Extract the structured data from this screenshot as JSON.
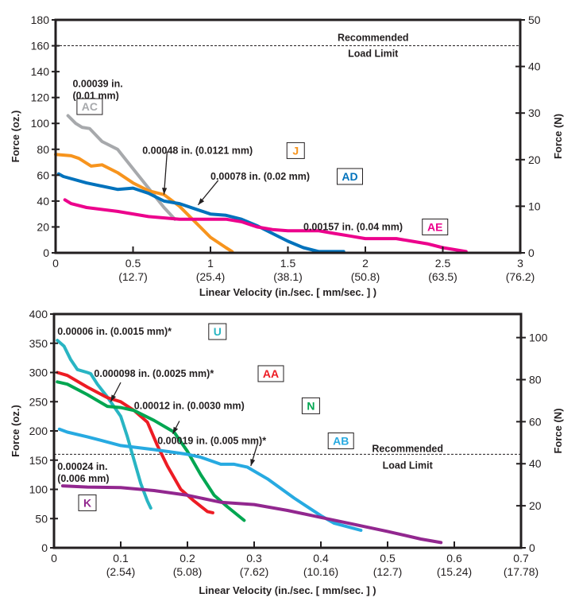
{
  "chart_data": [
    {
      "type": "line",
      "xlabel": "Linear Velocity (in./sec. [ mm/sec. ] )",
      "ylabel": "Force (oz.)",
      "y2label": "Force (N)",
      "xlim": [
        0,
        3
      ],
      "ylim": [
        0,
        180
      ],
      "y2lim": [
        0,
        50
      ],
      "xticks": [
        0,
        0.5,
        1,
        1.5,
        2,
        2.5,
        3
      ],
      "xtick_labels": [
        "0",
        "0.5",
        "1",
        "1.5",
        "2",
        "2.5",
        "3"
      ],
      "xtick_sublabels": [
        "",
        "(12.7)",
        "(25.4)",
        "(38.1)",
        "(50.8)",
        "(63.5)",
        "(76.2)"
      ],
      "yticks": [
        0,
        20,
        40,
        60,
        80,
        100,
        120,
        140,
        160,
        180
      ],
      "y2ticks": [
        0,
        10,
        20,
        30,
        40,
        50
      ],
      "limit": {
        "y": 160,
        "label1": "Recommended",
        "label2": "Load Limit"
      },
      "series": [
        {
          "name": "AC",
          "color": "#a7a9ac",
          "desc1": "0.00039 in.",
          "desc2": "(0.01 mm)",
          "x": [
            0.08,
            0.13,
            0.17,
            0.22,
            0.3,
            0.4,
            0.5,
            0.6,
            0.7,
            0.77
          ],
          "y": [
            106,
            100,
            97,
            96,
            86,
            80,
            65,
            50,
            35,
            26
          ]
        },
        {
          "name": "J",
          "color": "#f7941d",
          "desc1": "0.00048 in. (0.0121 mm)",
          "x": [
            0,
            0.1,
            0.15,
            0.23,
            0.3,
            0.4,
            0.5,
            0.6,
            0.7,
            0.8,
            0.9,
            1.0,
            1.1,
            1.14
          ],
          "y": [
            76,
            75,
            73,
            67,
            68,
            62,
            54,
            48,
            45,
            36,
            24,
            12,
            4,
            1
          ]
        },
        {
          "name": "AD",
          "color": "#0072bc",
          "desc1": "0.00078 in. (0.02 mm)",
          "x": [
            0.02,
            0.05,
            0.2,
            0.4,
            0.5,
            0.6,
            0.7,
            0.8,
            0.9,
            1.0,
            1.1,
            1.2,
            1.3,
            1.4,
            1.5,
            1.6,
            1.7,
            1.86
          ],
          "y": [
            61,
            59,
            54,
            49,
            50,
            46,
            40,
            38,
            34,
            30,
            29,
            26,
            21,
            15,
            9,
            4,
            1,
            1
          ]
        },
        {
          "name": "AE",
          "color": "#ec008c",
          "desc1": "0.00157 in. (0.04 mm)",
          "x": [
            0.06,
            0.1,
            0.2,
            0.4,
            0.6,
            0.8,
            1.0,
            1.1,
            1.2,
            1.3,
            1.4,
            1.5,
            1.7,
            1.8,
            1.9,
            2.0,
            2.2,
            2.3,
            2.4,
            2.5,
            2.65
          ],
          "y": [
            41,
            38,
            35,
            32,
            28,
            26,
            26,
            26,
            24,
            20,
            18,
            17,
            17,
            15,
            13,
            11,
            11,
            9,
            7,
            4,
            1
          ]
        }
      ]
    },
    {
      "type": "line",
      "xlabel": "Linear Velocity (in./sec. [ mm/sec. ] )",
      "ylabel": "Force (oz.)",
      "y2label": "Force (N)",
      "xlim": [
        0,
        0.7
      ],
      "ylim": [
        0,
        400
      ],
      "y2lim": [
        0,
        111.2
      ],
      "xticks": [
        0,
        0.1,
        0.2,
        0.3,
        0.4,
        0.5,
        0.6,
        0.7
      ],
      "xtick_labels": [
        "0",
        "0.1",
        "0.2",
        "0.3",
        "0.4",
        "0.5",
        "0.6",
        "0.7"
      ],
      "xtick_sublabels": [
        "",
        "(2.54)",
        "(5.08)",
        "(7.62)",
        "(10.16)",
        "(12.7)",
        "(15.24)",
        "(17.78)"
      ],
      "yticks": [
        0,
        50,
        100,
        150,
        200,
        250,
        300,
        350,
        400
      ],
      "y2ticks": [
        0,
        20,
        40,
        60,
        80,
        100
      ],
      "limit": {
        "y": 160,
        "label1": "Recommended",
        "label2": "Load Limit"
      },
      "series": [
        {
          "name": "U",
          "color": "#29b5c3",
          "desc1": "0.00006 in. (0.0015 mm)*",
          "x": [
            0.005,
            0.015,
            0.025,
            0.035,
            0.05,
            0.055,
            0.065,
            0.08,
            0.1,
            0.11,
            0.12,
            0.13,
            0.14,
            0.145
          ],
          "y": [
            355,
            345,
            322,
            305,
            300,
            298,
            280,
            258,
            225,
            190,
            150,
            110,
            80,
            68
          ]
        },
        {
          "name": "AA",
          "color": "#ed1c24",
          "desc1": "0.000098 in. (0.0025 mm)*",
          "x": [
            0.005,
            0.02,
            0.05,
            0.08,
            0.1,
            0.12,
            0.14,
            0.155,
            0.17,
            0.19,
            0.21,
            0.23,
            0.238
          ],
          "y": [
            300,
            295,
            275,
            257,
            250,
            235,
            215,
            175,
            140,
            100,
            80,
            62,
            60
          ]
        },
        {
          "name": "N",
          "color": "#00a651",
          "desc1": "0.00012 in. (0.0030 mm)",
          "x": [
            0.005,
            0.02,
            0.05,
            0.08,
            0.1,
            0.12,
            0.15,
            0.18,
            0.2,
            0.22,
            0.24,
            0.26,
            0.285
          ],
          "y": [
            284,
            280,
            262,
            242,
            240,
            235,
            218,
            198,
            165,
            125,
            90,
            70,
            47
          ]
        },
        {
          "name": "AB",
          "color": "#27aae1",
          "desc1": "0.00019 in. (0.005 mm)*",
          "x": [
            0.008,
            0.02,
            0.05,
            0.1,
            0.15,
            0.2,
            0.22,
            0.25,
            0.27,
            0.29,
            0.32,
            0.36,
            0.4,
            0.42,
            0.46
          ],
          "y": [
            203,
            198,
            190,
            175,
            168,
            160,
            155,
            143,
            143,
            138,
            118,
            85,
            55,
            42,
            30
          ]
        },
        {
          "name": "K",
          "color": "#92278f",
          "desc1": "0.00024 in.",
          "desc2": "(0.006 mm)",
          "x": [
            0.013,
            0.05,
            0.1,
            0.15,
            0.2,
            0.25,
            0.3,
            0.35,
            0.4,
            0.45,
            0.5,
            0.55,
            0.58
          ],
          "y": [
            106,
            104,
            103,
            98,
            90,
            78,
            74,
            64,
            52,
            40,
            28,
            15,
            9
          ]
        }
      ]
    }
  ]
}
